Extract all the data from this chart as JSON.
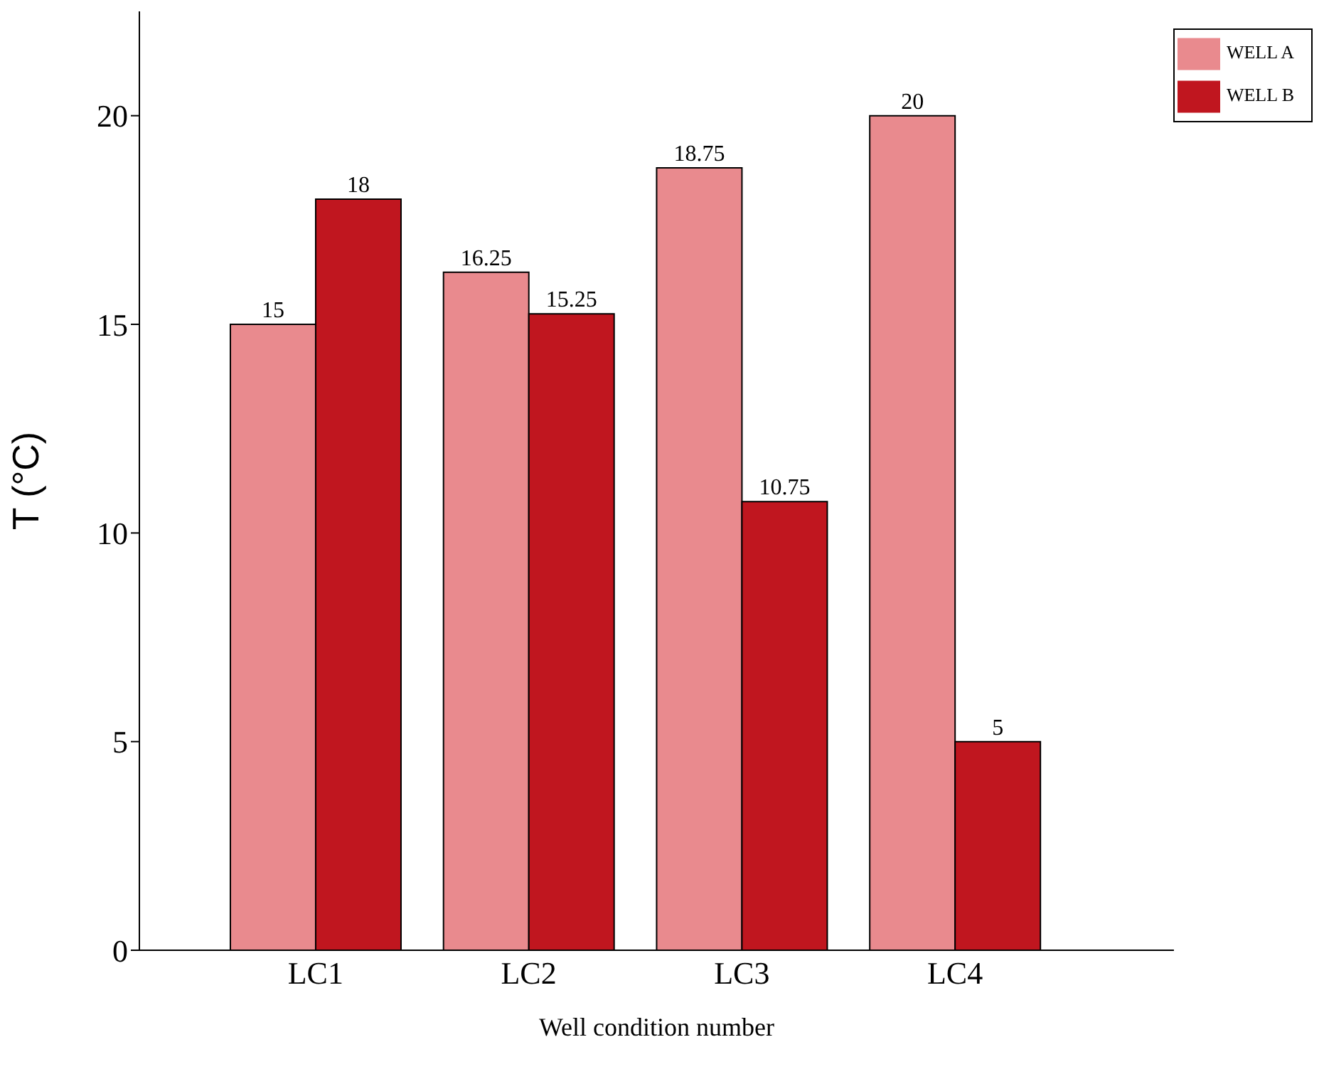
{
  "chart_data": {
    "type": "bar",
    "xlabel": "Well condition number",
    "ylabel": "T (°C)",
    "categories": [
      "LC1",
      "LC2",
      "LC3",
      "LC4"
    ],
    "series": [
      {
        "name": "WELL A",
        "color": "#e98a8e",
        "values": [
          15,
          16.25,
          18.75,
          20
        ]
      },
      {
        "name": "WELL B",
        "color": "#c0161f",
        "values": [
          18,
          15.25,
          10.75,
          5
        ]
      }
    ],
    "ylim": [
      0,
      22.5
    ],
    "yticks": [
      0,
      5,
      10,
      15,
      20
    ],
    "data_labels": true,
    "legend": "top right",
    "grid": false
  }
}
